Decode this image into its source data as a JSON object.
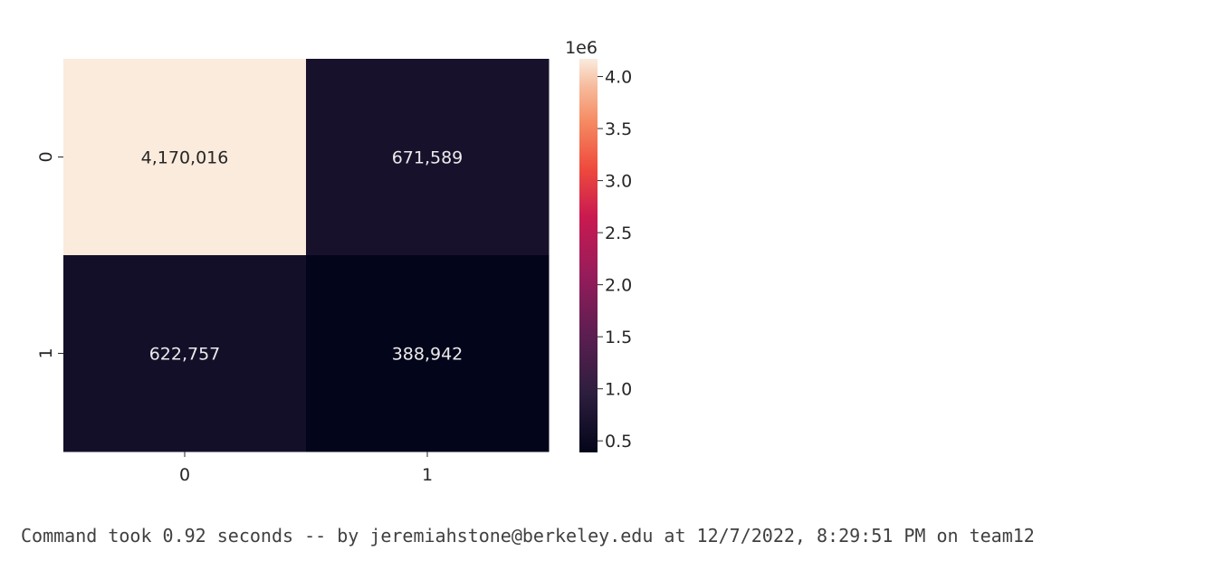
{
  "chart_data": {
    "type": "heatmap",
    "title": "",
    "xlabel": "",
    "ylabel": "",
    "x_tick_labels": [
      "0",
      "1"
    ],
    "y_tick_labels": [
      "0",
      "1"
    ],
    "values": [
      [
        4170016,
        671589
      ],
      [
        622757,
        388942
      ]
    ],
    "cell_labels": [
      [
        "4,170,016",
        "671,589"
      ],
      [
        "622,757",
        "388,942"
      ]
    ],
    "colormap": "rocket",
    "colorbar": {
      "range": [
        388942,
        4170016
      ],
      "ticks": [
        0.5,
        1.0,
        1.5,
        2.0,
        2.5,
        3.0,
        3.5,
        4.0
      ],
      "tick_labels": [
        "0.5",
        "1.0",
        "1.5",
        "2.0",
        "2.5",
        "3.0",
        "3.5",
        "4.0"
      ],
      "multiplier_label": "1e6",
      "multiplier": 1000000
    }
  },
  "footer": {
    "text": "Command took 0.92 seconds -- by jeremiahstone@berkeley.edu at 12/7/2022, 8:29:51 PM on team12"
  }
}
